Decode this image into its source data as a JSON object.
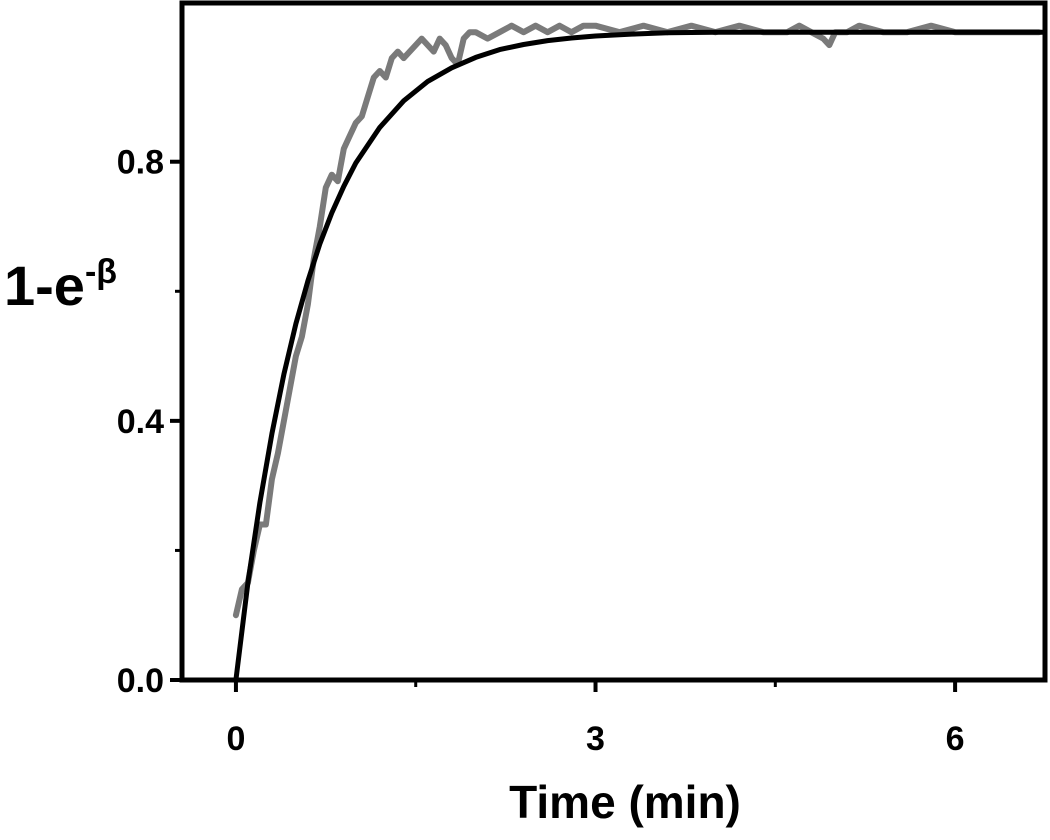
{
  "chart_data": {
    "type": "line",
    "title": "",
    "xlabel": "Time (min)",
    "ylabel_main": "1-e",
    "ylabel_sup": "-β",
    "xlim": [
      -0.45,
      6.75
    ],
    "ylim": [
      0.0,
      1.045
    ],
    "x_ticks": [
      0,
      3,
      6
    ],
    "x_tick_labels": [
      "0",
      "3",
      "6"
    ],
    "y_ticks": [
      0.0,
      0.4,
      0.8
    ],
    "y_tick_labels": [
      "0.0",
      "0.4",
      "0.8"
    ],
    "grid": false,
    "legend": "none",
    "series": [
      {
        "style": "data",
        "color": "#7a7a7a",
        "x": [
          0.0,
          0.05,
          0.1,
          0.15,
          0.2,
          0.25,
          0.3,
          0.35,
          0.4,
          0.45,
          0.5,
          0.55,
          0.6,
          0.65,
          0.7,
          0.75,
          0.8,
          0.85,
          0.9,
          0.95,
          1.0,
          1.05,
          1.1,
          1.15,
          1.2,
          1.25,
          1.3,
          1.35,
          1.4,
          1.45,
          1.5,
          1.55,
          1.6,
          1.65,
          1.7,
          1.75,
          1.8,
          1.85,
          1.9,
          1.95,
          2.0,
          2.1,
          2.2,
          2.3,
          2.4,
          2.5,
          2.6,
          2.7,
          2.8,
          2.9,
          3.0,
          3.2,
          3.4,
          3.6,
          3.8,
          4.0,
          4.2,
          4.4,
          4.6,
          4.7,
          4.8,
          4.9,
          4.95,
          5.0,
          5.1,
          5.2,
          5.4,
          5.6,
          5.8,
          6.0,
          6.2,
          6.4,
          6.6,
          6.7
        ],
        "y": [
          0.1,
          0.14,
          0.15,
          0.2,
          0.24,
          0.24,
          0.31,
          0.35,
          0.4,
          0.45,
          0.5,
          0.53,
          0.58,
          0.65,
          0.7,
          0.76,
          0.78,
          0.77,
          0.82,
          0.84,
          0.86,
          0.87,
          0.9,
          0.93,
          0.94,
          0.93,
          0.96,
          0.97,
          0.96,
          0.97,
          0.98,
          0.99,
          0.98,
          0.97,
          0.99,
          0.98,
          0.96,
          0.95,
          0.99,
          1.0,
          1.0,
          0.99,
          1.0,
          1.01,
          1.0,
          1.01,
          1.0,
          1.01,
          1.0,
          1.01,
          1.01,
          1.0,
          1.01,
          1.0,
          1.01,
          1.0,
          1.01,
          1.0,
          1.0,
          1.01,
          1.0,
          0.99,
          0.98,
          1.0,
          1.0,
          1.01,
          1.0,
          1.0,
          1.01,
          1.0,
          1.0,
          1.0,
          1.0,
          1.0
        ]
      },
      {
        "style": "fit",
        "color": "#000000",
        "x": [
          0.0,
          0.1,
          0.2,
          0.3,
          0.4,
          0.5,
          0.6,
          0.7,
          0.8,
          0.9,
          1.0,
          1.2,
          1.4,
          1.6,
          1.8,
          2.0,
          2.2,
          2.4,
          2.6,
          2.8,
          3.0,
          3.3,
          3.6,
          4.0,
          4.5,
          5.0,
          5.5,
          6.0,
          6.5,
          6.75
        ],
        "y": [
          0.0,
          0.15,
          0.274,
          0.38,
          0.472,
          0.55,
          0.616,
          0.673,
          0.721,
          0.762,
          0.798,
          0.853,
          0.894,
          0.924,
          0.945,
          0.961,
          0.973,
          0.981,
          0.987,
          0.991,
          0.994,
          0.997,
          0.999,
          1.0,
          1.0,
          1.0,
          1.0,
          1.0,
          1.0,
          1.0
        ]
      }
    ]
  }
}
